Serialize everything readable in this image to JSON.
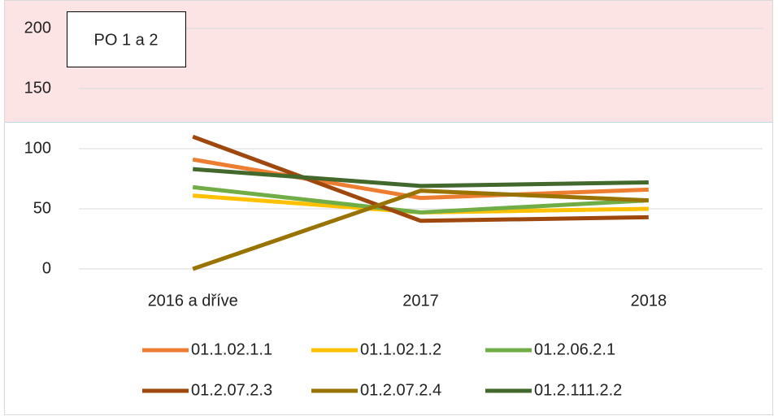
{
  "chart_data": {
    "type": "line",
    "annotation": "PO 1 a 2",
    "categories": [
      "2016 a dříve",
      "2017",
      "2018"
    ],
    "series": [
      {
        "name": "01.1.02.1.1",
        "color": "#ed7d31",
        "values": [
          91,
          59,
          66
        ]
      },
      {
        "name": "01.1.02.1.2",
        "color": "#ffc000",
        "values": [
          61,
          47,
          50
        ]
      },
      {
        "name": "01.2.06.2.1",
        "color": "#70ad47",
        "values": [
          68,
          47,
          57
        ]
      },
      {
        "name": "01.2.07.2.3",
        "color": "#9e480e",
        "values": [
          110,
          40,
          43
        ]
      },
      {
        "name": "01.2.07.2.4",
        "color": "#997300",
        "values": [
          0,
          65,
          57
        ]
      },
      {
        "name": "01.2.111.2.2",
        "color": "#43682b",
        "values": [
          83,
          69,
          72
        ]
      }
    ],
    "ylim": [
      0,
      200
    ],
    "yticks": [
      0,
      50,
      100,
      150,
      200
    ],
    "grid": true,
    "shaded_above": 122,
    "shade_color": "#fce4e4",
    "legend": "bottom"
  }
}
